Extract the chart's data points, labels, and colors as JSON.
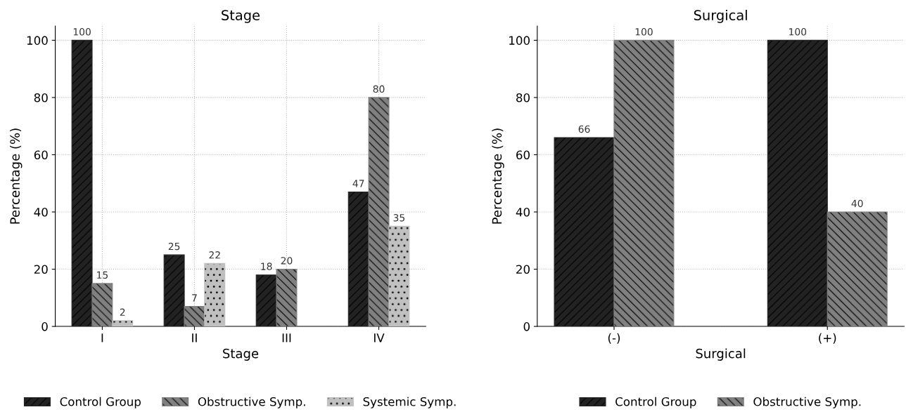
{
  "chart_data": [
    {
      "type": "bar",
      "title": "Stage",
      "xlabel": "Stage",
      "ylabel": "Percentage (%)",
      "categories": [
        "I",
        "II",
        "III",
        "IV"
      ],
      "series": [
        {
          "name": "Control Group",
          "color": "#222222",
          "values": [
            100,
            25,
            18,
            47
          ]
        },
        {
          "name": "Obstructive Symp.",
          "color": "#808080",
          "values": [
            15,
            7,
            20,
            80
          ]
        },
        {
          "name": "Systemic Symp.",
          "color": "#c0c0c0",
          "values": [
            2,
            22,
            null,
            35
          ]
        }
      ],
      "ylim": [
        0,
        105
      ],
      "yticks": [
        0,
        20,
        40,
        60,
        80,
        100
      ],
      "grid": true,
      "legend": "bottom",
      "data_labels": true
    },
    {
      "type": "bar",
      "title": "Surgical",
      "xlabel": "Surgical",
      "ylabel": "Percentage (%)",
      "categories": [
        "(-)",
        "(+)"
      ],
      "series": [
        {
          "name": "Control Group",
          "color": "#222222",
          "values": [
            66,
            100
          ]
        },
        {
          "name": "Obstructive Symp.",
          "color": "#808080",
          "values": [
            100,
            40
          ]
        }
      ],
      "ylim": [
        0,
        105
      ],
      "yticks": [
        0,
        20,
        40,
        60,
        80,
        100
      ],
      "grid": true,
      "legend": "bottom",
      "data_labels": true
    }
  ]
}
